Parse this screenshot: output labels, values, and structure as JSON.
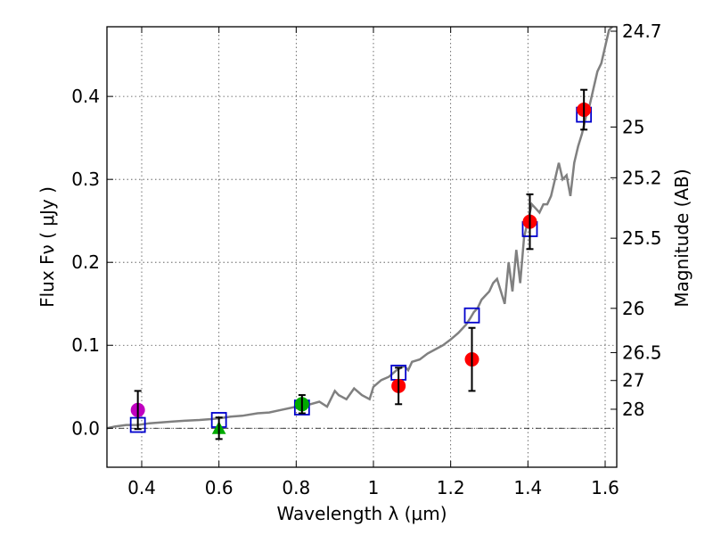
{
  "chart_data": {
    "type": "scatter",
    "xlabel": "Wavelength  λ (μm)",
    "ylabel": "Flux  Fν  ( μJy )",
    "y2label": "Magnitude (AB)",
    "xlim": [
      0.31,
      1.63
    ],
    "ylim": [
      -0.047,
      0.484
    ],
    "x_ticks": [
      {
        "value": 0.4,
        "label": "0.4"
      },
      {
        "value": 0.6,
        "label": "0.6"
      },
      {
        "value": 0.8,
        "label": "0.8"
      },
      {
        "value": 1.0,
        "label": "1"
      },
      {
        "value": 1.2,
        "label": "1.2"
      },
      {
        "value": 1.4,
        "label": "1.4"
      },
      {
        "value": 1.6,
        "label": "1.6"
      }
    ],
    "y_ticks": [
      {
        "value": 0.0,
        "label": "0.0"
      },
      {
        "value": 0.1,
        "label": "0.1"
      },
      {
        "value": 0.2,
        "label": "0.2"
      },
      {
        "value": 0.3,
        "label": "0.3"
      },
      {
        "value": 0.4,
        "label": "0.4"
      }
    ],
    "mag_ticks": [
      {
        "mag": 24.7,
        "label": "24.7"
      },
      {
        "mag": 25,
        "label": "25"
      },
      {
        "mag": 25.2,
        "label": "25.2"
      },
      {
        "mag": 25.5,
        "label": "25.5"
      },
      {
        "mag": 26,
        "label": "26"
      },
      {
        "mag": 26.5,
        "label": "26.5"
      },
      {
        "mag": 27,
        "label": "27"
      },
      {
        "mag": 28,
        "label": "28"
      }
    ],
    "sed_model": {
      "name": "model SED",
      "color": "#808080",
      "x": [
        0.31,
        0.33,
        0.36,
        0.39,
        0.42,
        0.45,
        0.48,
        0.51,
        0.55,
        0.58,
        0.6,
        0.63,
        0.66,
        0.7,
        0.73,
        0.76,
        0.8,
        0.83,
        0.86,
        0.88,
        0.9,
        0.91,
        0.93,
        0.95,
        0.97,
        0.99,
        1.0,
        1.02,
        1.04,
        1.06,
        1.08,
        1.09,
        1.1,
        1.12,
        1.14,
        1.16,
        1.18,
        1.2,
        1.22,
        1.24,
        1.25,
        1.26,
        1.27,
        1.28,
        1.29,
        1.3,
        1.31,
        1.32,
        1.33,
        1.34,
        1.35,
        1.36,
        1.37,
        1.38,
        1.39,
        1.4,
        1.41,
        1.42,
        1.43,
        1.44,
        1.45,
        1.46,
        1.47,
        1.48,
        1.49,
        1.5,
        1.51,
        1.52,
        1.53,
        1.54,
        1.55,
        1.56,
        1.57,
        1.58,
        1.59,
        1.6,
        1.61,
        1.62
      ],
      "y": [
        0.0,
        0.002,
        0.004,
        0.004,
        0.006,
        0.007,
        0.008,
        0.009,
        0.01,
        0.011,
        0.012,
        0.014,
        0.015,
        0.018,
        0.019,
        0.022,
        0.026,
        0.028,
        0.032,
        0.026,
        0.045,
        0.04,
        0.035,
        0.048,
        0.04,
        0.035,
        0.05,
        0.058,
        0.062,
        0.07,
        0.075,
        0.07,
        0.08,
        0.083,
        0.09,
        0.095,
        0.1,
        0.107,
        0.115,
        0.125,
        0.132,
        0.14,
        0.145,
        0.155,
        0.16,
        0.165,
        0.175,
        0.18,
        0.165,
        0.15,
        0.2,
        0.165,
        0.215,
        0.175,
        0.23,
        0.25,
        0.27,
        0.265,
        0.26,
        0.27,
        0.27,
        0.28,
        0.3,
        0.32,
        0.3,
        0.305,
        0.28,
        0.32,
        0.34,
        0.355,
        0.375,
        0.39,
        0.41,
        0.43,
        0.44,
        0.46,
        0.48,
        0.485
      ]
    },
    "model_photometry": {
      "name": "model fluxes",
      "marker": "open-square",
      "color": "#0000cc",
      "x": [
        0.39,
        0.6,
        0.815,
        1.065,
        1.255,
        1.405,
        1.545
      ],
      "y": [
        0.004,
        0.01,
        0.025,
        0.067,
        0.136,
        0.24,
        0.378
      ]
    },
    "observed_photometry": [
      {
        "x": 0.39,
        "y": 0.022,
        "err": 0.023,
        "color": "#c000c0",
        "marker": "circle"
      },
      {
        "x": 0.6,
        "y": 0.0,
        "err": 0.013,
        "color": "#00aa00",
        "marker": "triangle"
      },
      {
        "x": 0.815,
        "y": 0.029,
        "err": 0.011,
        "color": "#00aa00",
        "marker": "circle"
      },
      {
        "x": 1.065,
        "y": 0.051,
        "err": 0.022,
        "color": "#ff0000",
        "marker": "circle"
      },
      {
        "x": 1.255,
        "y": 0.083,
        "err": 0.038,
        "color": "#ff0000",
        "marker": "circle"
      },
      {
        "x": 1.405,
        "y": 0.249,
        "err": 0.033,
        "color": "#ff0000",
        "marker": "circle"
      },
      {
        "x": 1.545,
        "y": 0.384,
        "err": 0.024,
        "color": "#ff0000",
        "marker": "circle"
      }
    ],
    "zero_line": true,
    "grid": true
  }
}
